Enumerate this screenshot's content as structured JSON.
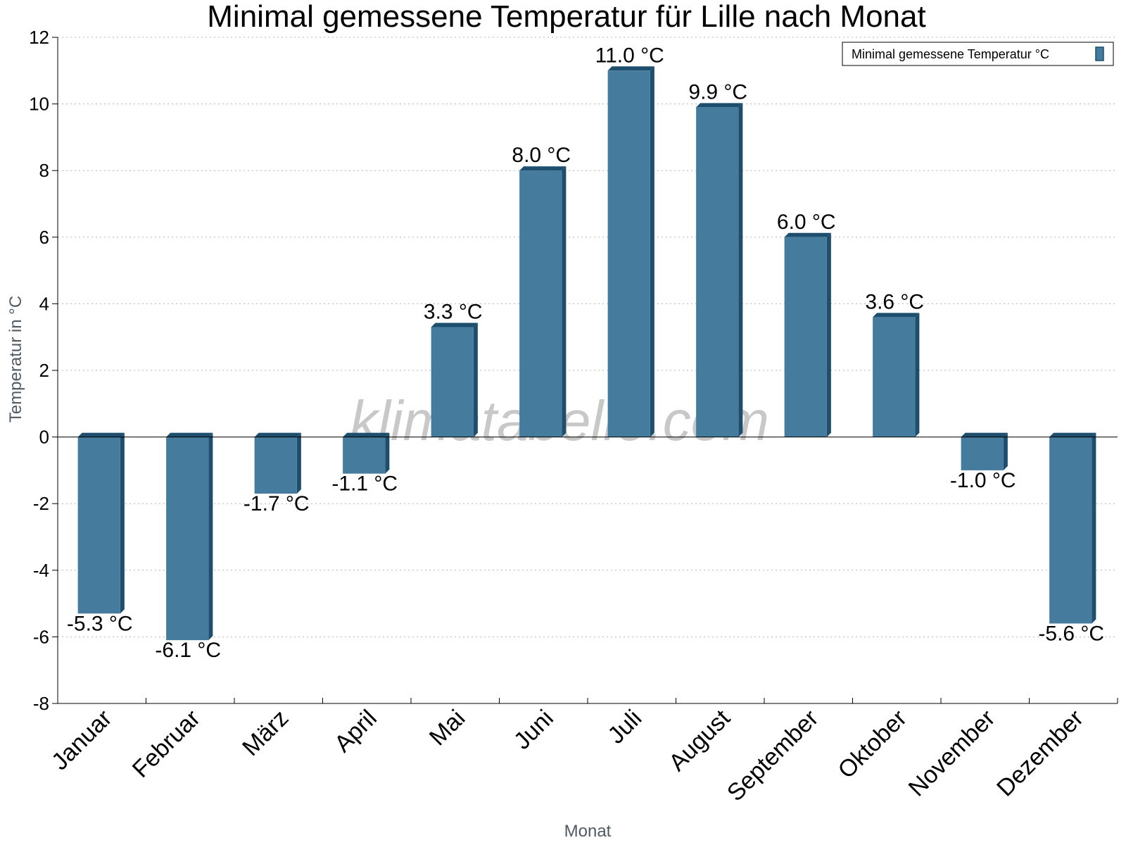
{
  "chart_data": {
    "type": "bar",
    "title": "Minimal gemessene Temperatur für Lille nach Monat",
    "xlabel": "Monat",
    "ylabel": "Temperatur in °C",
    "ylim": [
      -8,
      12
    ],
    "yticks": [
      -8,
      -6,
      -4,
      -2,
      0,
      2,
      4,
      6,
      8,
      10,
      12
    ],
    "grid": true,
    "legend_position": "top-right",
    "categories": [
      "Januar",
      "Februar",
      "März",
      "April",
      "Mai",
      "Juni",
      "Juli",
      "August",
      "September",
      "Oktober",
      "November",
      "Dezember"
    ],
    "series": [
      {
        "name": "Minimal gemessene Temperatur °C",
        "values": [
          -5.3,
          -6.1,
          -1.7,
          -1.1,
          3.3,
          8.0,
          11.0,
          9.9,
          6.0,
          3.6,
          -1.0,
          -5.6
        ],
        "labels": [
          "-5.3 °C",
          "-6.1 °C",
          "-1.7 °C",
          "-1.1 °C",
          "3.3 °C",
          "8.0 °C",
          "11.0 °C",
          "9.9 °C",
          "6.0 °C",
          "3.6 °C",
          "-1.0 °C",
          "-5.6 °C"
        ],
        "color": "#457b9d",
        "edge_color": "#1d4e6e"
      }
    ]
  },
  "watermark": "klimatabelle.com"
}
